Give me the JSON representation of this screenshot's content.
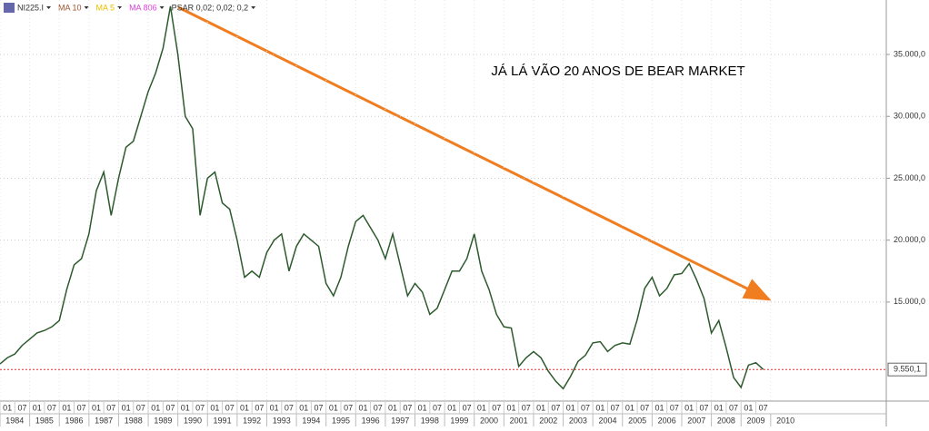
{
  "chart_data": {
    "type": "line",
    "annotation": "JÁ LÁ VÃO 20 ANOS DE BEAR MARKET",
    "legend": [
      "NI225.I",
      "MA 10",
      "MA 5",
      "MA 806",
      "PSAR 0,02; 0,02; 0,2"
    ],
    "legend_colors": [
      "#333333",
      "#a0522d",
      "#e8c000",
      "#e040e0",
      "#333333"
    ],
    "series": [
      {
        "name": "NI225.I",
        "color": "#2d5a2d",
        "x": [
          1984,
          1984.25,
          1984.5,
          1984.75,
          1985,
          1985.25,
          1985.5,
          1985.75,
          1986,
          1986.25,
          1986.5,
          1986.75,
          1987,
          1987.25,
          1987.5,
          1987.75,
          1988,
          1988.25,
          1988.5,
          1988.75,
          1989,
          1989.25,
          1989.5,
          1989.75,
          1990,
          1990.25,
          1990.5,
          1990.75,
          1991,
          1991.25,
          1991.5,
          1991.75,
          1992,
          1992.25,
          1992.5,
          1992.75,
          1993,
          1993.25,
          1993.5,
          1993.75,
          1994,
          1994.25,
          1994.5,
          1994.75,
          1995,
          1995.25,
          1995.5,
          1995.75,
          1996,
          1996.25,
          1996.5,
          1996.75,
          1997,
          1997.25,
          1997.5,
          1997.75,
          1998,
          1998.25,
          1998.5,
          1998.75,
          1999,
          1999.25,
          1999.5,
          1999.75,
          2000,
          2000.25,
          2000.5,
          2000.75,
          2001,
          2001.25,
          2001.5,
          2001.75,
          2002,
          2002.25,
          2002.5,
          2002.75,
          2003,
          2003.25,
          2003.5,
          2003.75,
          2004,
          2004.25,
          2004.5,
          2004.75,
          2005,
          2005.25,
          2005.5,
          2005.75,
          2006,
          2006.25,
          2006.5,
          2006.75,
          2007,
          2007.25,
          2007.5,
          2007.75,
          2008,
          2008.25,
          2008.5,
          2008.75,
          2009,
          2009.25,
          2009.5,
          2009.75
        ],
        "values": [
          10000,
          10500,
          10800,
          11500,
          12000,
          12500,
          12700,
          13000,
          13500,
          16000,
          18000,
          18500,
          20500,
          24000,
          25500,
          22000,
          25000,
          27500,
          28000,
          30000,
          32000,
          33500,
          35500,
          38900,
          35000,
          30000,
          29000,
          22000,
          25000,
          25500,
          23000,
          22500,
          20000,
          17000,
          17500,
          17000,
          19000,
          20000,
          20500,
          17500,
          19500,
          20500,
          20000,
          19500,
          16500,
          15500,
          17000,
          19500,
          21500,
          22000,
          21000,
          20000,
          18500,
          20500,
          18000,
          15500,
          16500,
          15800,
          14000,
          14500,
          16000,
          17500,
          17500,
          18500,
          20500,
          17500,
          16000,
          14000,
          13000,
          12900,
          9800,
          10500,
          11000,
          10500,
          9400,
          8600,
          8000,
          9000,
          10200,
          10700,
          11700,
          11800,
          11000,
          11500,
          11700,
          11600,
          13600,
          16100,
          17000,
          15500,
          16100,
          17200,
          17300,
          18100,
          16800,
          15300,
          12500,
          13500,
          11300,
          8900,
          8100,
          9900,
          10100,
          9550
        ]
      }
    ],
    "last_value": {
      "value": 9550.1,
      "label": "9.550,1"
    },
    "xlim": [
      1984,
      2013.9
    ],
    "xticks": [
      1984,
      1985,
      1986,
      1987,
      1988,
      1989,
      1990,
      1991,
      1992,
      1993,
      1994,
      1995,
      1996,
      1997,
      1998,
      1999,
      2000,
      2001,
      2002,
      2003,
      2004,
      2005,
      2006,
      2007,
      2008,
      2009,
      2010
    ],
    "x_minor_ticks": [
      {
        "value": 1984,
        "label": "01"
      },
      {
        "value": 1984.5,
        "label": "07"
      },
      {
        "value": 1985,
        "label": "01"
      },
      {
        "value": 1985.5,
        "label": "07"
      },
      {
        "value": 1986,
        "label": "01"
      },
      {
        "value": 1986.5,
        "label": "07"
      },
      {
        "value": 1987,
        "label": "01"
      },
      {
        "value": 1987.5,
        "label": "07"
      },
      {
        "value": 1988,
        "label": "01"
      },
      {
        "value": 1988.5,
        "label": "07"
      },
      {
        "value": 1989,
        "label": "01"
      },
      {
        "value": 1989.5,
        "label": "07"
      },
      {
        "value": 1990,
        "label": "01"
      },
      {
        "value": 1990.5,
        "label": "07"
      },
      {
        "value": 1991,
        "label": "01"
      },
      {
        "value": 1991.5,
        "label": "07"
      },
      {
        "value": 1992,
        "label": "01"
      },
      {
        "value": 1992.5,
        "label": "07"
      },
      {
        "value": 1993,
        "label": "01"
      },
      {
        "value": 1993.5,
        "label": "07"
      },
      {
        "value": 1994,
        "label": "01"
      },
      {
        "value": 1994.5,
        "label": "07"
      },
      {
        "value": 1995,
        "label": "01"
      },
      {
        "value": 1995.5,
        "label": "07"
      },
      {
        "value": 1996,
        "label": "01"
      },
      {
        "value": 1996.5,
        "label": "07"
      },
      {
        "value": 1997,
        "label": "01"
      },
      {
        "value": 1997.5,
        "label": "07"
      },
      {
        "value": 1998,
        "label": "01"
      },
      {
        "value": 1998.5,
        "label": "07"
      },
      {
        "value": 1999,
        "label": "01"
      },
      {
        "value": 1999.5,
        "label": "07"
      },
      {
        "value": 2000,
        "label": "01"
      },
      {
        "value": 2000.5,
        "label": "07"
      },
      {
        "value": 2001,
        "label": "01"
      },
      {
        "value": 2001.5,
        "label": "07"
      },
      {
        "value": 2002,
        "label": "01"
      },
      {
        "value": 2002.5,
        "label": "07"
      },
      {
        "value": 2003,
        "label": "01"
      },
      {
        "value": 2003.5,
        "label": "07"
      },
      {
        "value": 2004,
        "label": "01"
      },
      {
        "value": 2004.5,
        "label": "07"
      },
      {
        "value": 2005,
        "label": "01"
      },
      {
        "value": 2005.5,
        "label": "07"
      },
      {
        "value": 2006,
        "label": "01"
      },
      {
        "value": 2006.5,
        "label": "07"
      },
      {
        "value": 2007,
        "label": "01"
      },
      {
        "value": 2007.5,
        "label": "07"
      },
      {
        "value": 2008,
        "label": "01"
      },
      {
        "value": 2008.5,
        "label": "07"
      },
      {
        "value": 2009,
        "label": "01"
      },
      {
        "value": 2009.5,
        "label": "07"
      }
    ],
    "ylim": [
      7000,
      39400
    ],
    "yticks": [
      {
        "value": 15000,
        "label": "15.000,0"
      },
      {
        "value": 20000,
        "label": "20.000,0"
      },
      {
        "value": 25000,
        "label": "25.000,0"
      },
      {
        "value": 30000,
        "label": "30.000,0"
      },
      {
        "value": 35000,
        "label": "35.000,0"
      }
    ],
    "grid": true
  }
}
